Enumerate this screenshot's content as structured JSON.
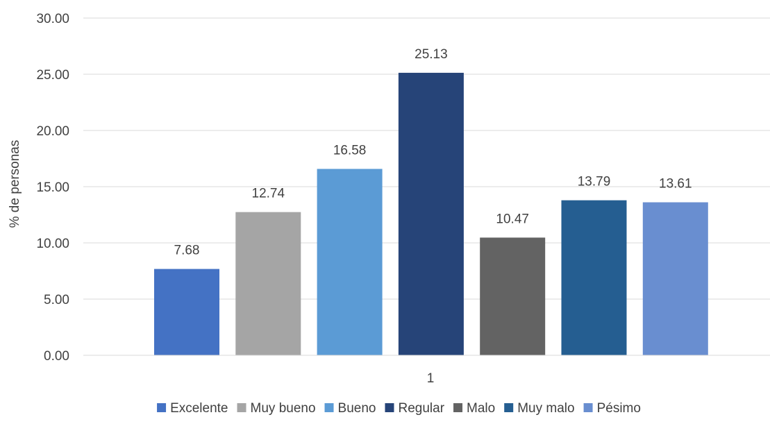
{
  "chart_data": {
    "type": "bar",
    "categories": [
      "1"
    ],
    "series": [
      {
        "name": "Excelente",
        "values": [
          7.68
        ],
        "color": "#4472C4",
        "label": "7.68"
      },
      {
        "name": "Muy bueno",
        "values": [
          12.74
        ],
        "color": "#A5A5A5",
        "label": "12.74"
      },
      {
        "name": "Bueno",
        "values": [
          16.58
        ],
        "color": "#5B9BD5",
        "label": "16.58"
      },
      {
        "name": "Regular",
        "values": [
          25.13
        ],
        "color": "#264478",
        "label": "25.13"
      },
      {
        "name": "Malo",
        "values": [
          10.47
        ],
        "color": "#636363",
        "label": "10.47"
      },
      {
        "name": "Muy malo",
        "values": [
          13.79
        ],
        "color": "#255E91",
        "label": "13.79"
      },
      {
        "name": "Pésimo",
        "values": [
          13.61
        ],
        "color": "#698ED0",
        "label": "13.61"
      }
    ],
    "ylabel": "% de personas",
    "xlabel": "",
    "ylim": [
      0,
      30
    ],
    "yticks": [
      {
        "value": 0,
        "label": "0.00"
      },
      {
        "value": 5,
        "label": "5.00"
      },
      {
        "value": 10,
        "label": "10.00"
      },
      {
        "value": 15,
        "label": "15.00"
      },
      {
        "value": 20,
        "label": "20.00"
      },
      {
        "value": 25,
        "label": "25.00"
      },
      {
        "value": 30,
        "label": "30.00"
      }
    ],
    "grid": true,
    "legend": "bottom"
  }
}
